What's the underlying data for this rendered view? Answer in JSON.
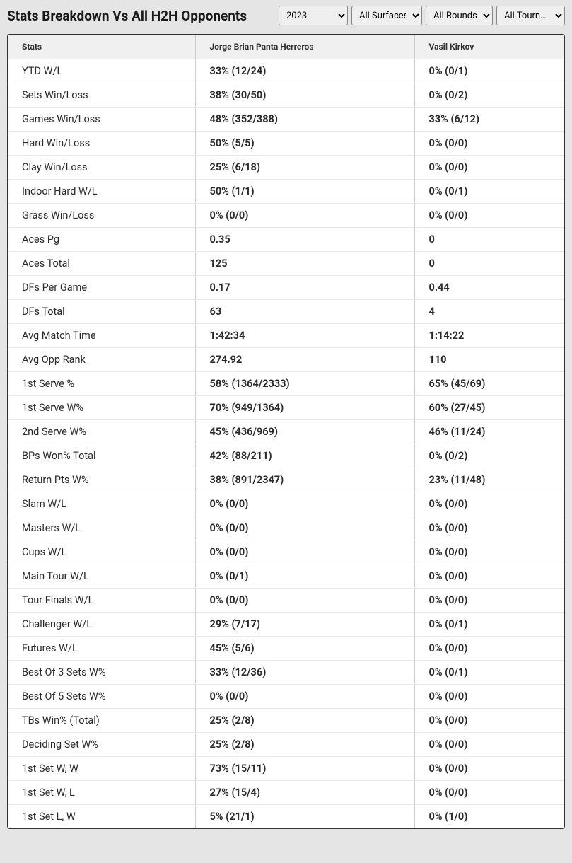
{
  "title": "Stats Breakdown Vs All H2H Opponents",
  "filters": {
    "year": "2023",
    "surface": "All Surfaces",
    "round": "All Rounds",
    "tournament": "All Tourn…"
  },
  "columns": {
    "stats": "Stats",
    "player1": "Jorge Brian Panta Herreros",
    "player2": "Vasil Kirkov"
  },
  "rows": [
    {
      "stat": "YTD W/L",
      "p1": "33% (12/24)",
      "p2": "0% (0/1)"
    },
    {
      "stat": "Sets Win/Loss",
      "p1": "38% (30/50)",
      "p2": "0% (0/2)"
    },
    {
      "stat": "Games Win/Loss",
      "p1": "48% (352/388)",
      "p2": "33% (6/12)"
    },
    {
      "stat": "Hard Win/Loss",
      "p1": "50% (5/5)",
      "p2": "0% (0/0)"
    },
    {
      "stat": "Clay Win/Loss",
      "p1": "25% (6/18)",
      "p2": "0% (0/0)"
    },
    {
      "stat": "Indoor Hard W/L",
      "p1": "50% (1/1)",
      "p2": "0% (0/1)"
    },
    {
      "stat": "Grass Win/Loss",
      "p1": "0% (0/0)",
      "p2": "0% (0/0)"
    },
    {
      "stat": "Aces Pg",
      "p1": "0.35",
      "p2": "0"
    },
    {
      "stat": "Aces Total",
      "p1": "125",
      "p2": "0"
    },
    {
      "stat": "DFs Per Game",
      "p1": "0.17",
      "p2": "0.44"
    },
    {
      "stat": "DFs Total",
      "p1": "63",
      "p2": "4"
    },
    {
      "stat": "Avg Match Time",
      "p1": "1:42:34",
      "p2": "1:14:22"
    },
    {
      "stat": "Avg Opp Rank",
      "p1": "274.92",
      "p2": "110"
    },
    {
      "stat": "1st Serve %",
      "p1": "58% (1364/2333)",
      "p2": "65% (45/69)"
    },
    {
      "stat": "1st Serve W%",
      "p1": "70% (949/1364)",
      "p2": "60% (27/45)"
    },
    {
      "stat": "2nd Serve W%",
      "p1": "45% (436/969)",
      "p2": "46% (11/24)"
    },
    {
      "stat": "BPs Won% Total",
      "p1": "42% (88/211)",
      "p2": "0% (0/2)"
    },
    {
      "stat": "Return Pts W%",
      "p1": "38% (891/2347)",
      "p2": "23% (11/48)"
    },
    {
      "stat": "Slam W/L",
      "p1": "0% (0/0)",
      "p2": "0% (0/0)"
    },
    {
      "stat": "Masters W/L",
      "p1": "0% (0/0)",
      "p2": "0% (0/0)"
    },
    {
      "stat": "Cups W/L",
      "p1": "0% (0/0)",
      "p2": "0% (0/0)"
    },
    {
      "stat": "Main Tour W/L",
      "p1": "0% (0/1)",
      "p2": "0% (0/0)"
    },
    {
      "stat": "Tour Finals W/L",
      "p1": "0% (0/0)",
      "p2": "0% (0/0)"
    },
    {
      "stat": "Challenger W/L",
      "p1": "29% (7/17)",
      "p2": "0% (0/1)"
    },
    {
      "stat": "Futures W/L",
      "p1": "45% (5/6)",
      "p2": "0% (0/0)"
    },
    {
      "stat": "Best Of 3 Sets W%",
      "p1": "33% (12/36)",
      "p2": "0% (0/1)"
    },
    {
      "stat": "Best Of 5 Sets W%",
      "p1": "0% (0/0)",
      "p2": "0% (0/0)"
    },
    {
      "stat": "TBs Win% (Total)",
      "p1": "25% (2/8)",
      "p2": "0% (0/0)"
    },
    {
      "stat": "Deciding Set W%",
      "p1": "25% (2/8)",
      "p2": "0% (0/0)"
    },
    {
      "stat": "1st Set W, W",
      "p1": "73% (15/11)",
      "p2": "0% (0/0)"
    },
    {
      "stat": "1st Set W, L",
      "p1": "27% (15/4)",
      "p2": "0% (0/0)"
    },
    {
      "stat": "1st Set L, W",
      "p1": "5% (21/1)",
      "p2": "0% (1/0)"
    }
  ],
  "styling": {
    "body_bg": "#e5e5e5",
    "table_bg": "#ffffff",
    "header_bg": "#f0f0f0",
    "border_color": "#333",
    "cell_border": "#ccc",
    "row_border": "#e8e8e8",
    "text_color": "#2a2a2a",
    "title_fontsize": 19,
    "header_fontsize": 12,
    "cell_fontsize": 14.5
  }
}
